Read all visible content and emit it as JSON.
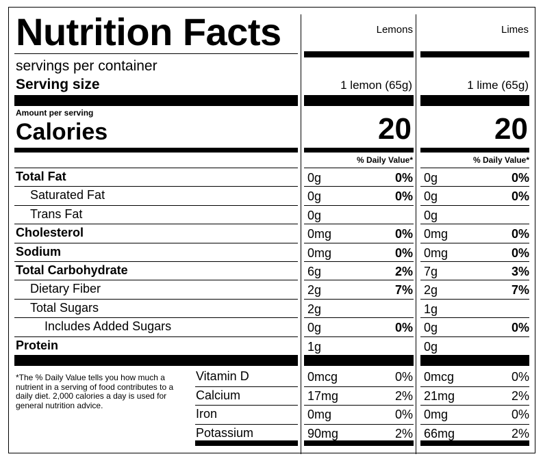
{
  "title": "Nutrition Facts",
  "columns": [
    "Lemons",
    "Limes"
  ],
  "servings_label": "servings per container",
  "serving_size_label": "Serving size",
  "serving_sizes": [
    "1 lemon (65g)",
    "1 lime (65g)"
  ],
  "amount_per_serving": "Amount per serving",
  "calories_label": "Calories",
  "calories": [
    "20",
    "20"
  ],
  "dv_header": "% Daily Value*",
  "nutrients": [
    {
      "label": "Total Fat",
      "bold": true,
      "indent": 0,
      "values": [
        {
          "amt": "0g",
          "pct": "0%"
        },
        {
          "amt": "0g",
          "pct": "0%"
        }
      ]
    },
    {
      "label": "Saturated Fat",
      "bold": false,
      "indent": 1,
      "values": [
        {
          "amt": "0g",
          "pct": "0%"
        },
        {
          "amt": "0g",
          "pct": "0%"
        }
      ]
    },
    {
      "label": "Trans Fat",
      "bold": false,
      "indent": 1,
      "values": [
        {
          "amt": "0g",
          "pct": ""
        },
        {
          "amt": "0g",
          "pct": ""
        }
      ]
    },
    {
      "label": "Cholesterol",
      "bold": true,
      "indent": 0,
      "values": [
        {
          "amt": "0mg",
          "pct": "0%"
        },
        {
          "amt": "0mg",
          "pct": "0%"
        }
      ]
    },
    {
      "label": "Sodium",
      "bold": true,
      "indent": 0,
      "values": [
        {
          "amt": "0mg",
          "pct": "0%"
        },
        {
          "amt": "0mg",
          "pct": "0%"
        }
      ]
    },
    {
      "label": "Total Carbohydrate",
      "bold": true,
      "indent": 0,
      "values": [
        {
          "amt": "6g",
          "pct": "2%"
        },
        {
          "amt": "7g",
          "pct": "3%"
        }
      ]
    },
    {
      "label": "Dietary Fiber",
      "bold": false,
      "indent": 1,
      "values": [
        {
          "amt": "2g",
          "pct": "7%"
        },
        {
          "amt": "2g",
          "pct": "7%"
        }
      ]
    },
    {
      "label": "Total Sugars",
      "bold": false,
      "indent": 1,
      "values": [
        {
          "amt": "2g",
          "pct": ""
        },
        {
          "amt": "1g",
          "pct": ""
        }
      ]
    },
    {
      "label": "Includes Added Sugars",
      "bold": false,
      "indent": 2,
      "values": [
        {
          "amt": "0g",
          "pct": "0%"
        },
        {
          "amt": "0g",
          "pct": "0%"
        }
      ]
    },
    {
      "label": "Protein",
      "bold": true,
      "indent": 0,
      "values": [
        {
          "amt": "1g",
          "pct": ""
        },
        {
          "amt": "0g",
          "pct": ""
        }
      ]
    }
  ],
  "vitamins": [
    {
      "label": "Vitamin D",
      "values": [
        {
          "amt": "0mcg",
          "pct": "0%"
        },
        {
          "amt": "0mcg",
          "pct": "0%"
        }
      ]
    },
    {
      "label": "Calcium",
      "values": [
        {
          "amt": "17mg",
          "pct": "2%"
        },
        {
          "amt": "21mg",
          "pct": "2%"
        }
      ]
    },
    {
      "label": "Iron",
      "values": [
        {
          "amt": "0mg",
          "pct": "0%"
        },
        {
          "amt": "0mg",
          "pct": "0%"
        }
      ]
    },
    {
      "label": "Potassium",
      "values": [
        {
          "amt": "90mg",
          "pct": "2%"
        },
        {
          "amt": "66mg",
          "pct": "2%"
        }
      ]
    }
  ],
  "footnote": "*The % Daily Value tells you how much a nutrient in a serving of food contributes to a daily diet. 2,000 calories a day is used for general nutrition advice."
}
